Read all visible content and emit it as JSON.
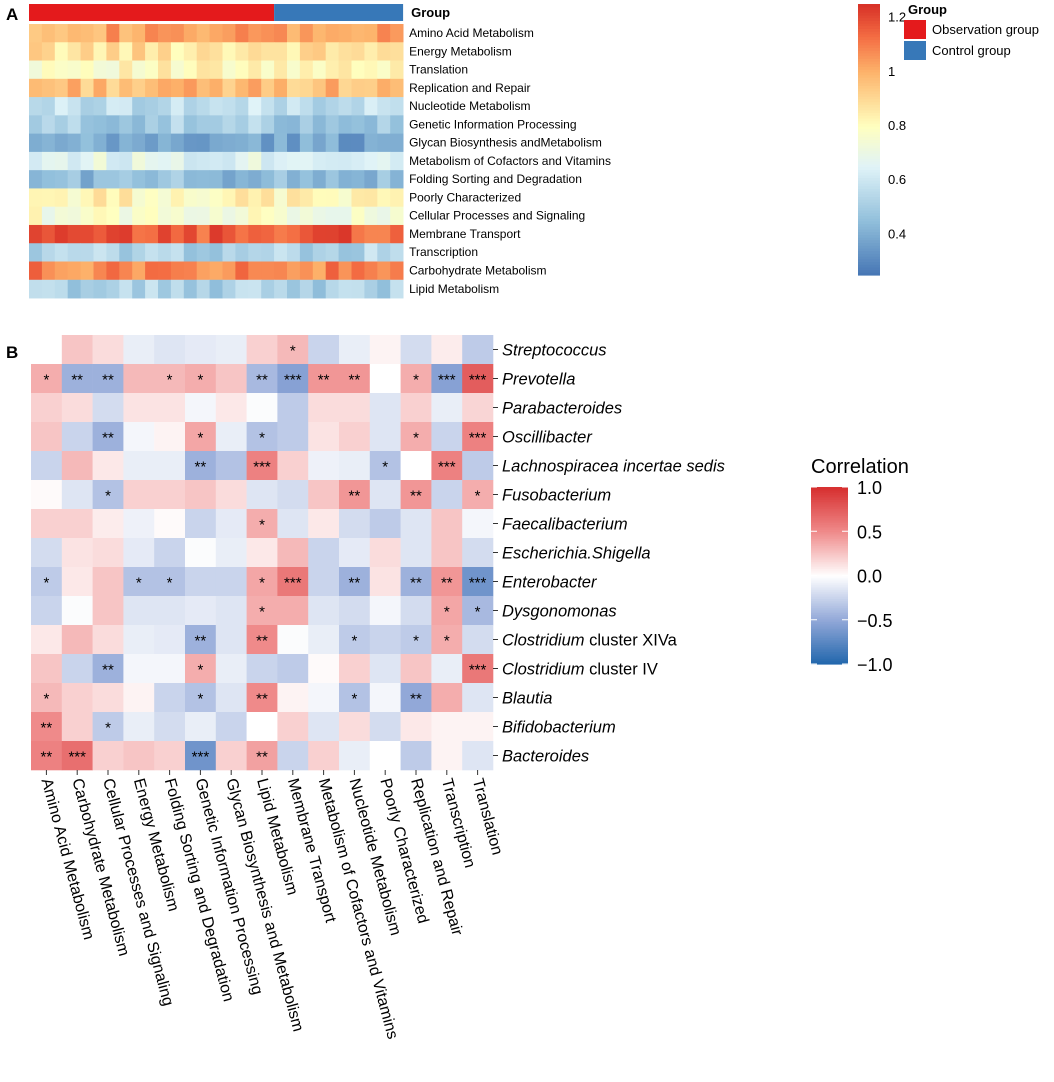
{
  "chart_data": [
    {
      "panel_label": "A",
      "type": "heatmap",
      "group_bar": {
        "title": "Group",
        "segments": [
          {
            "group": "Observation group",
            "columns": 19,
            "color": "#e41a1c"
          },
          {
            "group": "Control group",
            "columns": 10,
            "color": "#3778b8"
          }
        ]
      },
      "rows": [
        "Amino Acid Metabolism",
        "Energy Metabolism",
        "Translation",
        "Replication and Repair",
        "Nucleotide Metabolism",
        "Genetic Information Processing",
        "Glycan Biosynthesis andMetabolism",
        "Metabolism of Cofactors and Vitamins",
        "Folding Sorting and Degradation",
        "Poorly Characterized",
        "Cellular Processes and Signaling",
        "Membrane Transport",
        "Transcription",
        "Carbohydrate Metabolism",
        "Lipid Metabolism"
      ],
      "n_columns": 29,
      "row_means": [
        1.02,
        0.88,
        0.8,
        0.97,
        0.57,
        0.5,
        0.38,
        0.67,
        0.45,
        0.82,
        0.76,
        1.16,
        0.53,
        1.08,
        0.52
      ],
      "values_note": "Per-sample relative abundance (approx.)",
      "legend": {
        "title": "Group",
        "items": [
          {
            "label": "Observation group",
            "color": "#e41a1c"
          },
          {
            "label": "Control group",
            "color": "#3778b8"
          }
        ]
      },
      "colorbar": {
        "min": 0.25,
        "max": 1.25,
        "ticks": [
          "0.4",
          "0.6",
          "0.8",
          "1",
          "1.2"
        ],
        "tick_values": [
          0.4,
          0.6,
          0.8,
          1.0,
          1.2
        ]
      }
    },
    {
      "panel_label": "B",
      "type": "heatmap",
      "title": "Correlation",
      "rows": [
        "Streptococcus",
        "Prevotella",
        "Parabacteroides",
        "Oscillibacter",
        "Lachnospiracea incertae sedis",
        "Fusobacterium",
        "Faecalibacterium",
        "Escherichia.Shigella",
        "Enterobacter",
        "Dysgonomonas",
        "Clostridium cluster XIVa",
        "Clostridium cluster IV",
        "Blautia",
        "Bifidobacterium",
        "Bacteroides"
      ],
      "row_labels": [
        [
          {
            "t": "Streptococcus",
            "i": true
          }
        ],
        [
          {
            "t": "Prevotella",
            "i": true
          }
        ],
        [
          {
            "t": "Parabacteroides",
            "i": true
          }
        ],
        [
          {
            "t": "Oscillibacter",
            "i": true
          }
        ],
        [
          {
            "t": "Lachnospiracea incertae sedis",
            "i": true
          }
        ],
        [
          {
            "t": "Fusobacterium",
            "i": true
          }
        ],
        [
          {
            "t": "Faecalibacterium",
            "i": true
          }
        ],
        [
          {
            "t": "Escherichia.Shigella",
            "i": true
          }
        ],
        [
          {
            "t": "Enterobacter",
            "i": true
          }
        ],
        [
          {
            "t": "Dysgonomonas",
            "i": true
          }
        ],
        [
          {
            "t": "Clostridium",
            "i": true
          },
          {
            "t": " cluster XIVa",
            "i": false
          }
        ],
        [
          {
            "t": "Clostridium",
            "i": true
          },
          {
            "t": " cluster IV",
            "i": false
          }
        ],
        [
          {
            "t": "Blautia",
            "i": true
          }
        ],
        [
          {
            "t": "Bifidobacterium",
            "i": true
          }
        ],
        [
          {
            "t": "Bacteroides",
            "i": true
          }
        ]
      ],
      "columns": [
        "Amino Acid Metabolism",
        "Carbohydrate Metabolism",
        "Cellular Processes and Signaling",
        "Energy Metabolism",
        "Folding Sorting and Degradation",
        "Genetic Information Processing",
        "Glycan Biosynthesis and Metabolism",
        "Lipid Metabolism",
        "Membrane Transport",
        "Metabolism of Cofactors and Vitamins",
        "Nucleotide Metabolism",
        "Poorly Characterized",
        "Replication and Repair",
        "Transcription",
        "Translation"
      ],
      "values": [
        [
          0.0,
          0.25,
          0.15,
          -0.1,
          -0.15,
          -0.12,
          -0.1,
          0.2,
          0.3,
          -0.25,
          -0.1,
          0.05,
          -0.2,
          0.08,
          -0.3
        ],
        [
          0.35,
          -0.45,
          -0.45,
          0.3,
          0.3,
          0.35,
          0.25,
          -0.4,
          -0.55,
          0.45,
          0.45,
          0.0,
          0.35,
          -0.55,
          0.75
        ],
        [
          0.2,
          0.15,
          -0.2,
          0.12,
          0.12,
          -0.05,
          0.1,
          -0.02,
          -0.3,
          0.15,
          0.15,
          -0.15,
          0.2,
          -0.1,
          0.18
        ],
        [
          0.25,
          -0.25,
          -0.45,
          -0.05,
          0.05,
          0.38,
          -0.1,
          -0.35,
          -0.3,
          0.12,
          0.2,
          -0.15,
          0.35,
          -0.25,
          0.55
        ],
        [
          -0.25,
          0.3,
          0.1,
          -0.1,
          -0.1,
          -0.45,
          -0.35,
          0.55,
          0.2,
          -0.08,
          -0.1,
          -0.35,
          0.0,
          0.55,
          -0.3
        ],
        [
          0.02,
          -0.15,
          -0.35,
          0.2,
          0.2,
          0.25,
          0.15,
          -0.15,
          -0.2,
          0.25,
          0.45,
          -0.15,
          0.45,
          -0.25,
          0.35
        ],
        [
          0.2,
          0.2,
          0.08,
          -0.08,
          0.02,
          -0.25,
          -0.12,
          0.35,
          -0.15,
          0.1,
          -0.2,
          -0.3,
          -0.15,
          0.25,
          -0.05
        ],
        [
          -0.2,
          0.12,
          0.15,
          -0.12,
          -0.25,
          -0.02,
          -0.1,
          0.1,
          0.3,
          -0.25,
          -0.12,
          0.15,
          -0.15,
          0.25,
          -0.2
        ],
        [
          -0.3,
          0.1,
          0.25,
          -0.35,
          -0.35,
          -0.25,
          -0.25,
          0.38,
          0.6,
          -0.25,
          -0.45,
          0.12,
          -0.45,
          0.45,
          -0.65
        ],
        [
          -0.25,
          -0.02,
          0.25,
          -0.15,
          -0.15,
          -0.12,
          -0.15,
          0.35,
          0.35,
          -0.15,
          -0.2,
          -0.05,
          -0.2,
          0.38,
          -0.4
        ],
        [
          0.1,
          0.3,
          0.15,
          -0.1,
          -0.12,
          -0.45,
          -0.15,
          0.5,
          -0.02,
          -0.1,
          -0.3,
          -0.25,
          -0.3,
          0.35,
          -0.2
        ],
        [
          0.25,
          -0.25,
          -0.45,
          -0.05,
          -0.05,
          0.35,
          -0.1,
          -0.25,
          -0.3,
          0.02,
          0.2,
          -0.15,
          0.25,
          -0.1,
          0.6
        ],
        [
          0.3,
          0.2,
          0.15,
          0.05,
          -0.25,
          -0.35,
          -0.15,
          0.5,
          0.05,
          -0.05,
          -0.35,
          -0.05,
          -0.5,
          0.35,
          -0.15
        ],
        [
          0.5,
          0.2,
          -0.3,
          -0.1,
          -0.2,
          -0.1,
          -0.25,
          0.0,
          0.2,
          -0.15,
          0.15,
          -0.2,
          0.1,
          0.05,
          0.05
        ],
        [
          0.55,
          0.65,
          0.2,
          0.25,
          0.2,
          -0.65,
          0.2,
          0.4,
          -0.25,
          0.2,
          -0.1,
          0.0,
          -0.3,
          0.05,
          -0.15
        ]
      ],
      "significance": [
        [
          "",
          "",
          "",
          "",
          "",
          "",
          "",
          "",
          "*",
          "",
          "",
          "",
          "",
          "",
          ""
        ],
        [
          "*",
          "**",
          "**",
          "",
          "*",
          "*",
          "",
          "**",
          "***",
          "**",
          "**",
          "",
          "*",
          "***",
          "***"
        ],
        [
          "",
          "",
          "",
          "",
          "",
          "",
          "",
          "",
          "",
          "",
          "",
          "",
          "",
          "",
          ""
        ],
        [
          "",
          "",
          "**",
          "",
          "",
          "*",
          "",
          "*",
          "",
          "",
          "",
          "",
          "*",
          "",
          "***"
        ],
        [
          "",
          "",
          "",
          "",
          "",
          "**",
          "",
          "***",
          "",
          "",
          "",
          "*",
          "",
          "***",
          ""
        ],
        [
          "",
          "",
          "*",
          "",
          "",
          "",
          "",
          "",
          "",
          "",
          "**",
          "",
          "**",
          "",
          "*"
        ],
        [
          "",
          "",
          "",
          "",
          "",
          "",
          "",
          "*",
          "",
          "",
          "",
          "",
          "",
          "",
          ""
        ],
        [
          "",
          "",
          "",
          "",
          "",
          "",
          "",
          "",
          "",
          "",
          "",
          "",
          "",
          "",
          ""
        ],
        [
          "*",
          "",
          "",
          "*",
          "*",
          "",
          "",
          "*",
          "***",
          "",
          "**",
          "",
          "**",
          "**",
          "***"
        ],
        [
          "",
          "",
          "",
          "",
          "",
          "",
          "",
          "*",
          "",
          "",
          "",
          "",
          "",
          "*",
          "*"
        ],
        [
          "",
          "",
          "",
          "",
          "",
          "**",
          "",
          "**",
          "",
          "",
          "*",
          "",
          "*",
          "*",
          ""
        ],
        [
          "",
          "",
          "**",
          "",
          "",
          "*",
          "",
          "",
          "",
          "",
          "",
          "",
          "",
          "",
          "***"
        ],
        [
          "*",
          "",
          "",
          "",
          "",
          "*",
          "",
          "**",
          "",
          "",
          "*",
          "",
          "**",
          "",
          ""
        ],
        [
          "**",
          "",
          "*",
          "",
          "",
          "",
          "",
          "",
          "",
          "",
          "",
          "",
          "",
          "",
          ""
        ],
        [
          "**",
          "***",
          "",
          "",
          "",
          "***",
          "",
          "**",
          "",
          "",
          "",
          "",
          "",
          "",
          ""
        ]
      ],
      "colorbar": {
        "title": "Correlation",
        "min": -1.0,
        "max": 1.0,
        "ticks": [
          "1.0",
          "0.5",
          "0.0",
          "−0.5",
          "−1.0"
        ],
        "tick_values": [
          1.0,
          0.5,
          0.0,
          -0.5,
          -1.0
        ]
      }
    }
  ]
}
